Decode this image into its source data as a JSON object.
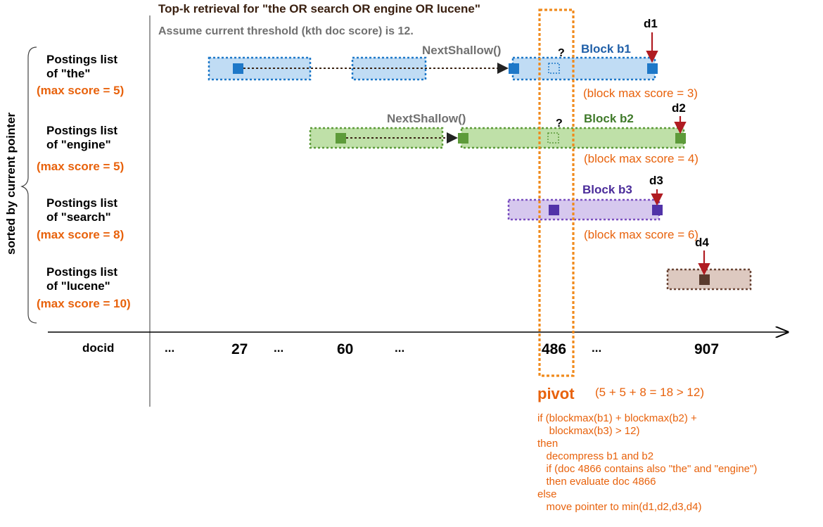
{
  "title": "Top-k retrieval for \"the OR search OR engine OR lucene\"",
  "subtitle": "Assume current threshold (kth doc score) is 12.",
  "side_label": "sorted by current pointer",
  "lists": [
    {
      "line1": "Postings list",
      "line2": "of \"the\"",
      "max_score": "(max score = 5)"
    },
    {
      "line1": "Postings list",
      "line2": "of \"engine\"",
      "max_score": "(max score = 5)"
    },
    {
      "line1": "Postings list",
      "line2": "of \"search\"",
      "max_score": "(max score = 8)"
    },
    {
      "line1": "Postings list",
      "line2": "of \"lucene\"",
      "max_score": "(max score = 10)"
    }
  ],
  "next_shallow": "NextShallow()",
  "question": "?",
  "blocks": [
    {
      "name": "Block b1",
      "max": "(block max score = 3)",
      "doc": "d1",
      "color": "#1f5fa8"
    },
    {
      "name": "Block b2",
      "max": "(block max score = 4)",
      "doc": "d2",
      "color": "#3f7a2a"
    },
    {
      "name": "Block b3",
      "max": "(block max score = 6)",
      "doc": "d3",
      "color": "#4b2c9a"
    },
    {
      "doc": "d4"
    }
  ],
  "axis": {
    "label": "docid",
    "ticks": [
      "...",
      "27",
      "...",
      "60",
      "...",
      "486",
      "...",
      "907"
    ]
  },
  "pivot": {
    "label": "pivot",
    "sum": "(5 + 5 + 8 = 18 > 12)"
  },
  "pseudocode": [
    "if (blockmax(b1) + blockmax(b2) +",
    "    blockmax(b3) > 12)",
    "then",
    "   decompress b1 and b2",
    "   if (doc 4866 contains also \"the\" and \"engine\")",
    "   then evaluate doc 4866",
    "else",
    "   move pointer to min(d1,d2,d3,d4)"
  ],
  "colors": {
    "orange": "#e8620c",
    "blue": "#1f5fa8",
    "green": "#3f7a2a",
    "purple": "#4b2c9a",
    "brown": "#5a3b2e",
    "red_arrow": "#b01c22"
  }
}
